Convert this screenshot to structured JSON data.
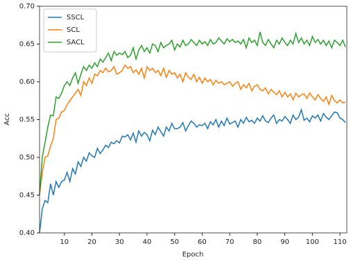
{
  "chart_data": {
    "type": "line",
    "xlabel": "Epoch",
    "ylabel": "Acc",
    "x": [
      1,
      2,
      3,
      4,
      5,
      6,
      7,
      8,
      9,
      10,
      11,
      12,
      13,
      14,
      15,
      16,
      17,
      18,
      19,
      20,
      21,
      22,
      23,
      24,
      25,
      26,
      27,
      28,
      29,
      30,
      31,
      32,
      33,
      34,
      35,
      36,
      37,
      38,
      39,
      40,
      41,
      42,
      43,
      44,
      45,
      46,
      47,
      48,
      49,
      50,
      51,
      52,
      53,
      54,
      55,
      56,
      57,
      58,
      59,
      60,
      61,
      62,
      63,
      64,
      65,
      66,
      67,
      68,
      69,
      70,
      71,
      72,
      73,
      74,
      75,
      76,
      77,
      78,
      79,
      80,
      81,
      82,
      83,
      84,
      85,
      86,
      87,
      88,
      89,
      90,
      91,
      92,
      93,
      94,
      95,
      96,
      97,
      98,
      99,
      100,
      101,
      102,
      103,
      104,
      105,
      106,
      107,
      108,
      109,
      110,
      111,
      112
    ],
    "series": [
      {
        "name": "SSCL",
        "color": "#1f77b4",
        "values": [
          0.4,
          0.432,
          0.443,
          0.44,
          0.465,
          0.45,
          0.468,
          0.46,
          0.468,
          0.47,
          0.48,
          0.468,
          0.485,
          0.478,
          0.494,
          0.488,
          0.5,
          0.495,
          0.506,
          0.502,
          0.5,
          0.512,
          0.505,
          0.51,
          0.516,
          0.513,
          0.52,
          0.518,
          0.522,
          0.519,
          0.528,
          0.527,
          0.53,
          0.523,
          0.532,
          0.52,
          0.535,
          0.528,
          0.533,
          0.53,
          0.522,
          0.536,
          0.53,
          0.54,
          0.534,
          0.528,
          0.54,
          0.535,
          0.545,
          0.538,
          0.538,
          0.54,
          0.546,
          0.535,
          0.542,
          0.548,
          0.545,
          0.54,
          0.543,
          0.542,
          0.545,
          0.538,
          0.547,
          0.543,
          0.55,
          0.54,
          0.548,
          0.542,
          0.552,
          0.544,
          0.546,
          0.548,
          0.54,
          0.55,
          0.545,
          0.553,
          0.547,
          0.549,
          0.545,
          0.552,
          0.548,
          0.555,
          0.548,
          0.546,
          0.552,
          0.556,
          0.545,
          0.55,
          0.548,
          0.554,
          0.55,
          0.545,
          0.556,
          0.55,
          0.553,
          0.563,
          0.549,
          0.552,
          0.547,
          0.555,
          0.552,
          0.556,
          0.548,
          0.558,
          0.553,
          0.55,
          0.555,
          0.56,
          0.559,
          0.552,
          0.55,
          0.546
        ]
      },
      {
        "name": "SCL",
        "color": "#ff7f0e",
        "values": [
          0.45,
          0.48,
          0.5,
          0.502,
          0.515,
          0.525,
          0.55,
          0.552,
          0.56,
          0.562,
          0.57,
          0.575,
          0.58,
          0.585,
          0.59,
          0.582,
          0.6,
          0.595,
          0.605,
          0.598,
          0.61,
          0.608,
          0.615,
          0.612,
          0.618,
          0.613,
          0.615,
          0.62,
          0.61,
          0.612,
          0.615,
          0.622,
          0.618,
          0.62,
          0.612,
          0.616,
          0.61,
          0.618,
          0.605,
          0.62,
          0.615,
          0.618,
          0.612,
          0.615,
          0.608,
          0.618,
          0.606,
          0.615,
          0.61,
          0.612,
          0.605,
          0.61,
          0.6,
          0.612,
          0.606,
          0.603,
          0.61,
          0.6,
          0.606,
          0.598,
          0.605,
          0.6,
          0.603,
          0.596,
          0.602,
          0.598,
          0.6,
          0.596,
          0.598,
          0.6,
          0.594,
          0.598,
          0.6,
          0.59,
          0.596,
          0.592,
          0.598,
          0.588,
          0.594,
          0.596,
          0.59,
          0.588,
          0.592,
          0.584,
          0.59,
          0.586,
          0.583,
          0.588,
          0.58,
          0.586,
          0.58,
          0.584,
          0.576,
          0.585,
          0.58,
          0.583,
          0.584,
          0.578,
          0.585,
          0.58,
          0.576,
          0.583,
          0.578,
          0.574,
          0.58,
          0.57,
          0.582,
          0.575,
          0.572,
          0.576,
          0.572,
          0.573
        ]
      },
      {
        "name": "SACL",
        "color": "#2ca02c",
        "values": [
          0.45,
          0.5,
          0.52,
          0.54,
          0.556,
          0.555,
          0.58,
          0.578,
          0.585,
          0.595,
          0.6,
          0.595,
          0.605,
          0.612,
          0.598,
          0.61,
          0.62,
          0.615,
          0.622,
          0.618,
          0.625,
          0.62,
          0.63,
          0.626,
          0.632,
          0.638,
          0.628,
          0.64,
          0.635,
          0.638,
          0.636,
          0.64,
          0.632,
          0.635,
          0.645,
          0.63,
          0.642,
          0.648,
          0.64,
          0.645,
          0.638,
          0.65,
          0.648,
          0.64,
          0.652,
          0.645,
          0.648,
          0.65,
          0.655,
          0.642,
          0.65,
          0.646,
          0.655,
          0.648,
          0.65,
          0.656,
          0.652,
          0.648,
          0.655,
          0.65,
          0.653,
          0.648,
          0.656,
          0.65,
          0.652,
          0.658,
          0.654,
          0.65,
          0.657,
          0.653,
          0.656,
          0.652,
          0.654,
          0.65,
          0.656,
          0.645,
          0.658,
          0.652,
          0.655,
          0.648,
          0.666,
          0.652,
          0.648,
          0.656,
          0.65,
          0.645,
          0.655,
          0.65,
          0.658,
          0.652,
          0.648,
          0.655,
          0.65,
          0.664,
          0.652,
          0.658,
          0.65,
          0.655,
          0.648,
          0.66,
          0.652,
          0.656,
          0.65,
          0.655,
          0.648,
          0.654,
          0.645,
          0.655,
          0.652,
          0.648,
          0.655,
          0.646
        ]
      }
    ],
    "xlim": [
      1,
      112.5
    ],
    "ylim": [
      0.4,
      0.7
    ],
    "xticks": [
      10,
      20,
      30,
      40,
      50,
      60,
      70,
      80,
      90,
      100,
      110
    ],
    "yticks": [
      {
        "value": 0.4,
        "label": "0.40"
      },
      {
        "value": 0.45,
        "label": "0.45"
      },
      {
        "value": 0.5,
        "label": "0.50"
      },
      {
        "value": 0.55,
        "label": "0.55"
      },
      {
        "value": 0.6,
        "label": "0.60"
      },
      {
        "value": 0.65,
        "label": "0.65"
      },
      {
        "value": 0.7,
        "label": "0.70"
      }
    ],
    "grid": false,
    "legend": "upper left"
  }
}
